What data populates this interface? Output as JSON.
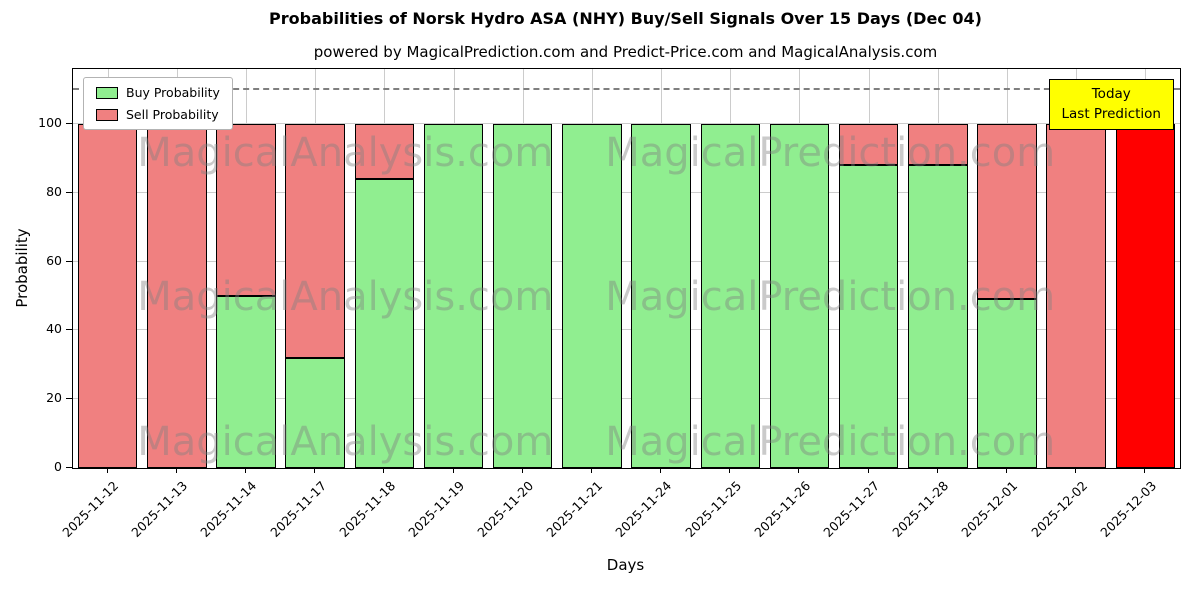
{
  "title": "Probabilities of Norsk Hydro ASA (NHY) Buy/Sell Signals Over 15 Days (Dec 04)",
  "subtitle": "powered by MagicalPrediction.com and Predict-Price.com and MagicalAnalysis.com",
  "axes": {
    "x_label": "Days",
    "y_label": "Probability",
    "y_ticks": [
      0,
      20,
      40,
      60,
      80,
      100
    ]
  },
  "legend": [
    {
      "label": "Buy Probability",
      "color": "#90ee90"
    },
    {
      "label": "Sell Probability",
      "color": "#f08080"
    }
  ],
  "annotation_box": {
    "lines": [
      "Today",
      "Last Prediction"
    ],
    "bg": "#ffff00"
  },
  "watermarks": [
    "MagicalAnalysis.com",
    "MagicalPrediction.com"
  ],
  "chart_data": {
    "type": "bar",
    "stacked": true,
    "title": "Probabilities of Norsk Hydro ASA (NHY) Buy/Sell Signals Over 15 Days (Dec 04)",
    "xlabel": "Days",
    "ylabel": "Probability",
    "ylim": [
      0,
      116
    ],
    "grid": true,
    "legend_position": "upper left",
    "dashed_line_y": 110,
    "categories": [
      "2025-11-12",
      "2025-11-13",
      "2025-11-14",
      "2025-11-17",
      "2025-11-18",
      "2025-11-19",
      "2025-11-20",
      "2025-11-21",
      "2025-11-24",
      "2025-11-25",
      "2025-11-26",
      "2025-11-27",
      "2025-11-28",
      "2025-12-01",
      "2025-12-02",
      "2025-12-03"
    ],
    "series": [
      {
        "name": "Buy Probability",
        "color": "#90ee90",
        "values": [
          0,
          0,
          50,
          32,
          84,
          100,
          100,
          100,
          100,
          100,
          100,
          88,
          88,
          49,
          0,
          0
        ]
      },
      {
        "name": "Sell Probability",
        "color": "#f08080",
        "values": [
          100,
          100,
          50,
          68,
          16,
          0,
          0,
          0,
          0,
          0,
          0,
          12,
          12,
          51,
          100,
          100
        ]
      }
    ],
    "today_bar": {
      "category": "2025-12-03",
      "color": "#ff0000"
    }
  }
}
